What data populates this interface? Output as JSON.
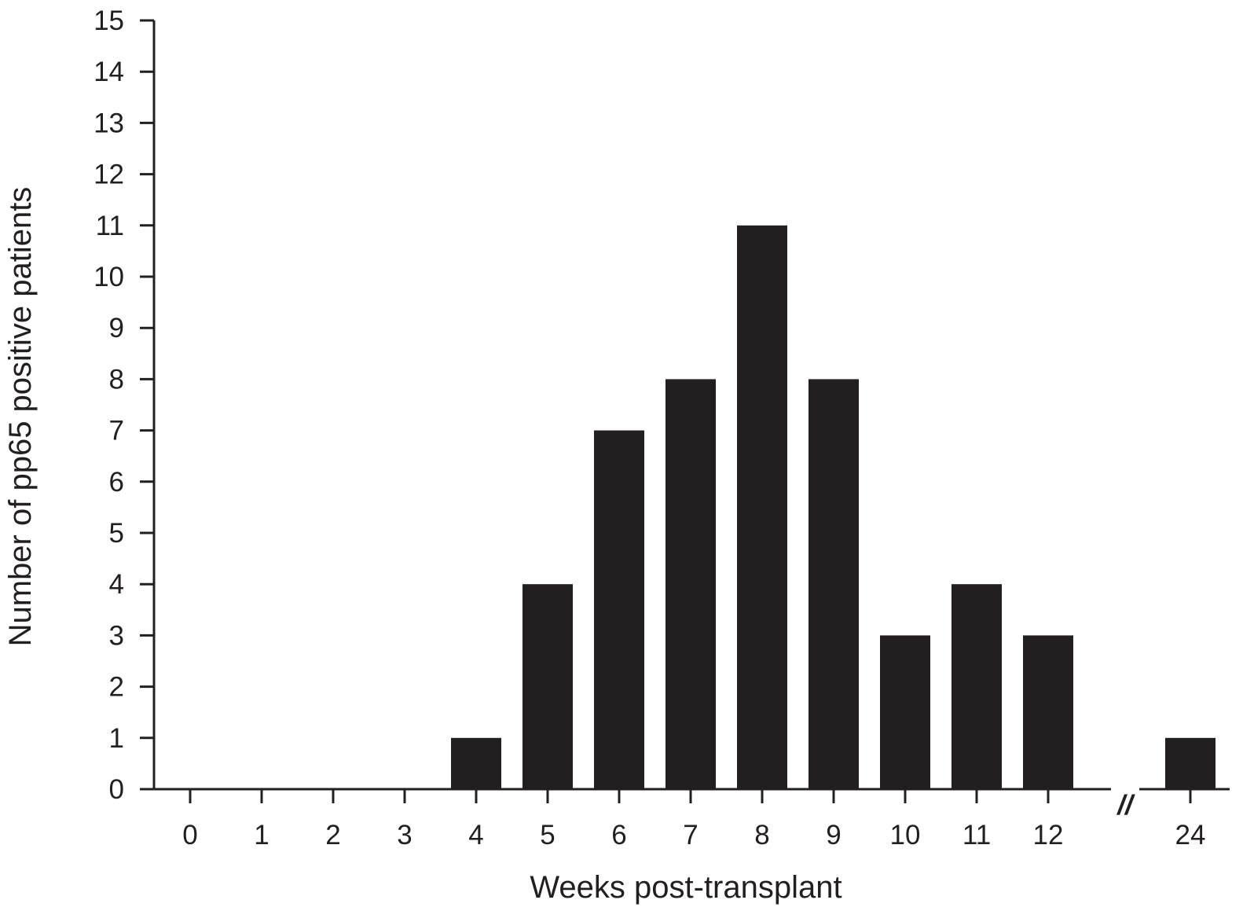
{
  "chart_data": {
    "type": "bar",
    "categories": [
      "0",
      "1",
      "2",
      "3",
      "4",
      "5",
      "6",
      "7",
      "8",
      "9",
      "10",
      "11",
      "12",
      "24"
    ],
    "values": [
      0,
      0,
      0,
      0,
      1,
      4,
      7,
      8,
      11,
      8,
      3,
      4,
      3,
      1
    ],
    "xlabel": "Weeks post-transplant",
    "ylabel": "Number of pp65 positive patients",
    "ylim": [
      0,
      15
    ],
    "yticks": [
      "0",
      "1",
      "2",
      "3",
      "4",
      "5",
      "6",
      "7",
      "8",
      "9",
      "10",
      "11",
      "12",
      "13",
      "14",
      "15"
    ],
    "axis_break": "//",
    "grid": false,
    "legend": "none",
    "bar_color": "#231f20",
    "axis_color": "#231f20"
  }
}
